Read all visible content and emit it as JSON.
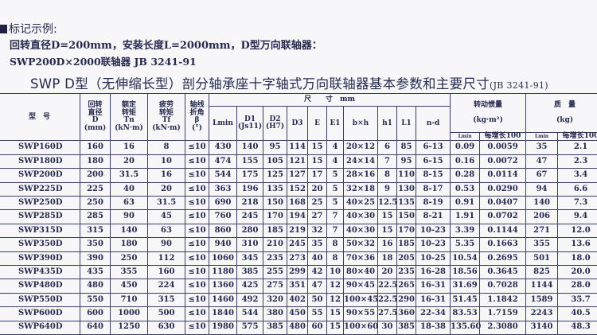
{
  "section_heading": "标记示例:",
  "example_line1": "回转直径D=200mm，安装长度L=2000mm，D型万向联轴器：",
  "example_line2": "SWP200D×2000联轴器 JB 3241-91",
  "table_title": "SWP D型（无伸缩长型）剖分轴承座十字轴式万向联轴器基本参数和主要尺寸",
  "table_title_std": "(JB 3241-91)",
  "headers": {
    "model": "型　号",
    "D": [
      "回转",
      "直径",
      "D",
      "(mm)"
    ],
    "Tn": [
      "额定",
      "转矩",
      "Tn",
      "(kN·m)"
    ],
    "Tf": [
      "疲劳",
      "转矩",
      "Tf",
      "(kN·m)"
    ],
    "beta": [
      "轴线",
      "折角",
      "β",
      "(°)"
    ],
    "dims": "尺　　寸　mm",
    "dim_cols": [
      "Lmin",
      "D1 (Js11)",
      "D2 (H7)",
      "D3",
      "E",
      "E1",
      "b×h",
      "h1",
      "L1",
      "n-d"
    ],
    "inertia": [
      "转动惯量",
      "(kg·m²)"
    ],
    "mass": [
      "质　量",
      "(kg)"
    ],
    "lmin": "Lmin",
    "per100": "每增长100"
  },
  "rows": [
    [
      "SWP160D",
      "160",
      "16",
      "8",
      "≤10",
      "430",
      "140",
      "95",
      "114",
      "15",
      "4",
      "20×12",
      "6",
      "85",
      "6-13",
      "0.09",
      "0.0059",
      "35",
      "2.1"
    ],
    [
      "SWP180D",
      "180",
      "20",
      "10",
      "≤10",
      "474",
      "155",
      "105",
      "121",
      "15",
      "4",
      "24×14",
      "7",
      "95",
      "6-15",
      "0.16",
      "0.0072",
      "47",
      "2.3"
    ],
    [
      "SWP200D",
      "200",
      "31.5",
      "16",
      "≤10",
      "544",
      "175",
      "125",
      "127",
      "17",
      "5",
      "28×16",
      "8",
      "110",
      "8-15",
      "0.28",
      "0.0114",
      "67",
      "3.4"
    ],
    [
      "SWP225D",
      "225",
      "40",
      "20",
      "≤10",
      "363",
      "196",
      "135",
      "152",
      "20",
      "5",
      "32×18",
      "9",
      "130",
      "8-17",
      "0.53",
      "0.0290",
      "94",
      "6.6"
    ],
    [
      "SWP250D",
      "250",
      "63",
      "31.5",
      "≤10",
      "690",
      "218",
      "150",
      "168",
      "25",
      "5",
      "40×25",
      "12.5",
      "135",
      "8-19",
      "0.91",
      "0.0407",
      "140",
      "7.3"
    ],
    [
      "SWP285D",
      "285",
      "90",
      "45",
      "≤10",
      "760",
      "245",
      "170",
      "194",
      "27",
      "7",
      "40×30",
      "15",
      "150",
      "8-21",
      "1.91",
      "0.0702",
      "206",
      "9.4"
    ],
    [
      "SWP315D",
      "315",
      "140",
      "63",
      "≤10",
      "860",
      "280",
      "185",
      "219",
      "32",
      "7",
      "40×30",
      "15",
      "170",
      "10-23",
      "3.39",
      "0.1144",
      "271",
      "12.0"
    ],
    [
      "SWP350D",
      "350",
      "180",
      "90",
      "≤10",
      "940",
      "310",
      "210",
      "245",
      "35",
      "8",
      "50×32",
      "16",
      "185",
      "10-23",
      "5.35",
      "0.1663",
      "355",
      "13.6"
    ],
    [
      "SWP390D",
      "390",
      "250",
      "112",
      "≤10",
      "1060",
      "345",
      "235",
      "273",
      "40",
      "8",
      "70×36",
      "18",
      "205",
      "10-25",
      "10.54",
      "0.2695",
      "501",
      "18.0"
    ],
    [
      "SWP435D",
      "435",
      "355",
      "160",
      "≤10",
      "1180",
      "385",
      "255",
      "299",
      "42",
      "10",
      "80×40",
      "20",
      "235",
      "16-28",
      "18.56",
      "0.3645",
      "825",
      "20.0"
    ],
    [
      "SWP480D",
      "480",
      "450",
      "224",
      "≤10",
      "1360",
      "425",
      "275",
      "351",
      "47",
      "12",
      "90×45",
      "22.5",
      "265",
      "16-31",
      "31.69",
      "0.7028",
      "1144",
      "28.0"
    ],
    [
      "SWP550D",
      "550",
      "710",
      "315",
      "≤10",
      "1460",
      "492",
      "320",
      "402",
      "50",
      "12",
      "100×45",
      "22.5",
      "290",
      "16-31",
      "51.45",
      "1.1842",
      "1589",
      "35.7"
    ],
    [
      "SWP600D",
      "600",
      "1000",
      "500",
      "≤10",
      "1840",
      "544",
      "380",
      "450",
      "55",
      "15",
      "90×55",
      "27.5",
      "360",
      "22-34",
      "83.53",
      "1.7159",
      "2243",
      "40.5"
    ],
    [
      "SWP640D",
      "640",
      "1250",
      "630",
      "≤10",
      "1980",
      "575",
      "385",
      "480",
      "60",
      "15",
      "100×60",
      "30",
      "385",
      "18-38",
      "135.60",
      "2.3080",
      "3140",
      "48.3"
    ]
  ]
}
